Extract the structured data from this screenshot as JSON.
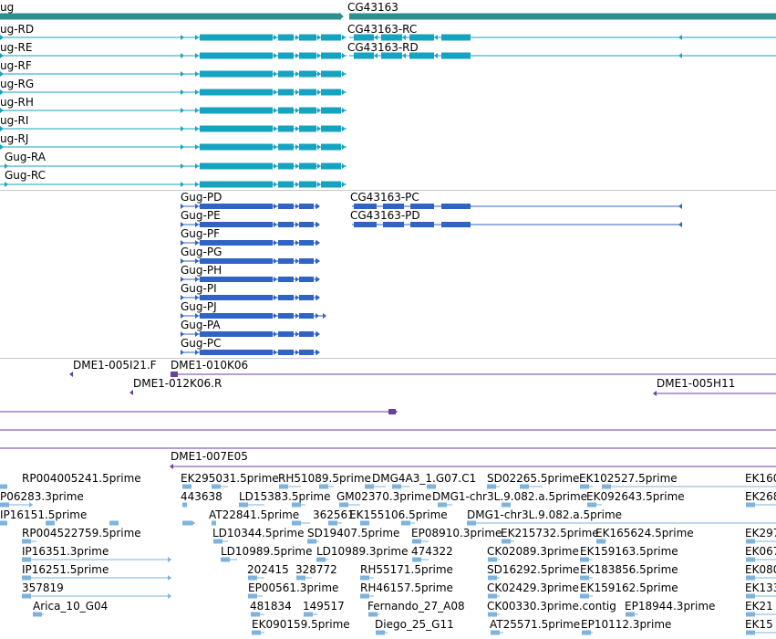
{
  "colors": {
    "gene": "#2f8f8f",
    "transcript_a": "#16a3bf",
    "transcript_b": "#2f63c4",
    "clone": "#6a3fa0",
    "est": "#7eb3dc",
    "divider": "#c8c8c8"
  },
  "genes": [
    {
      "label": "ug",
      "strand": "+"
    },
    {
      "label": "CG43163",
      "strand": "+"
    }
  ],
  "transcripts_a": [
    {
      "label": "ug-RD",
      "strand": "+"
    },
    {
      "label": "ug-RE",
      "strand": "+"
    },
    {
      "label": "ug-RF",
      "strand": "+"
    },
    {
      "label": "ug-RG",
      "strand": "+"
    },
    {
      "label": "ug-RH",
      "strand": "+"
    },
    {
      "label": "ug-RI",
      "strand": "+"
    },
    {
      "label": "ug-RJ",
      "strand": "+"
    },
    {
      "label": "Gug-RA",
      "strand": "+"
    },
    {
      "label": "Gug-RC",
      "strand": "+"
    },
    {
      "label": "CG43163-RC",
      "strand": "-"
    },
    {
      "label": "CG43163-RD",
      "strand": "-"
    }
  ],
  "transcripts_b": [
    {
      "label": "Gug-PD",
      "strand": "+"
    },
    {
      "label": "Gug-PE",
      "strand": "+"
    },
    {
      "label": "Gug-PF",
      "strand": "+"
    },
    {
      "label": "Gug-PG",
      "strand": "+"
    },
    {
      "label": "Gug-PH",
      "strand": "+"
    },
    {
      "label": "Gug-PI",
      "strand": "+"
    },
    {
      "label": "Gug-PJ",
      "strand": "+"
    },
    {
      "label": "Gug-PA",
      "strand": "+"
    },
    {
      "label": "Gug-PC",
      "strand": "+"
    },
    {
      "label": "CG43163-PC",
      "strand": "-"
    },
    {
      "label": "CG43163-PD",
      "strand": "-"
    }
  ],
  "clones": [
    {
      "label": "DME1-005I21.F"
    },
    {
      "label": "DME1-010K06"
    },
    {
      "label": "DME1-012K06.R"
    },
    {
      "label": "DME1-005H11"
    },
    {
      "label": "DME1-007E05"
    }
  ],
  "ests": [
    "RP004005241.5prime",
    "EK295031.5prime",
    "RH51089.5prime",
    "DMG4A3_1.G07.C1",
    "SD02265.5prime",
    "EK102527.5prime",
    "EK160",
    "P06283.3prime",
    "443638",
    "LD15383.5prime",
    "GM02370.3prime",
    "DMG1-chr3L.9.082.a.5prime",
    "EK092643.5prime",
    "EK268",
    "IP16151.5prime",
    "AT22841.5prime",
    "362561",
    "EK155106.5prime",
    "DMG1-chr3L.9.082.a.5prime",
    "RP004522759.5prime",
    "LD10344.5prime",
    "SD19407.5prime",
    "EP08910.3prime",
    "EK215732.5prime",
    "EK165624.5prime",
    "EK297",
    "IP16351.3prime",
    "LD10989.5prime",
    "LD10989.3prime",
    "474322",
    "CK02089.3prime",
    "EK159163.5prime",
    "EK067",
    "IP16251.5prime",
    "202415",
    "328772",
    "RH55171.5prime",
    "SD16292.5prime",
    "EK183856.5prime",
    "EK080",
    "357819",
    "EP00561.3prime",
    "RH46157.5prime",
    "CK02429.3prime",
    "EK159162.5prime",
    "EK133",
    "Arica_10_G04",
    "481834",
    "149517",
    "Fernando_27_A08",
    "CK00330.3prime.contig",
    "EP18944.3prime",
    "EK21",
    "EK090159.5prime",
    "Diego_25_G11",
    "AT25571.5prime",
    "EP10112.3prime",
    "EK15"
  ]
}
